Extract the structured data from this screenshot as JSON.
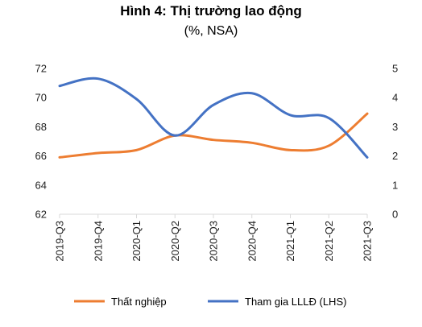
{
  "chart_data": {
    "type": "line",
    "title": "Hình 4: Thị trường lao động",
    "subtitle": "(%, NSA)",
    "categories": [
      "2019-Q3",
      "2019-Q4",
      "2020-Q1",
      "2020-Q2",
      "2020-Q3",
      "2020-Q4",
      "2021-Q1",
      "2021-Q2",
      "2021-Q3"
    ],
    "left_axis": {
      "ylim": [
        62,
        72
      ],
      "ticks": [
        62,
        64,
        66,
        68,
        70,
        72
      ]
    },
    "right_axis": {
      "ylim": [
        0,
        5
      ],
      "ticks": [
        0,
        1,
        2,
        3,
        4,
        5
      ]
    },
    "grid": false,
    "legend_position": "bottom",
    "series": [
      {
        "name": "Thất nghiệp",
        "axis": "left",
        "color": "#ED7D31",
        "values": [
          65.9,
          66.2,
          66.4,
          67.4,
          67.1,
          66.9,
          66.4,
          66.7,
          68.9
        ]
      },
      {
        "name": "Tham gia LLLĐ (LHS)",
        "axis": "right",
        "color": "#4472C4",
        "values": [
          4.4,
          4.65,
          3.95,
          2.7,
          3.75,
          4.15,
          3.4,
          3.3,
          1.95
        ]
      }
    ]
  }
}
